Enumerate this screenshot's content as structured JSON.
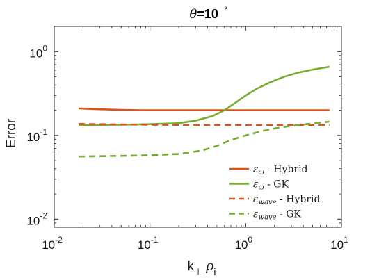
{
  "chart_data": {
    "type": "line",
    "title": {
      "prefix": "θ",
      "value": "=10",
      "suffix": "°"
    },
    "xlabel": {
      "main": "k",
      "sub1": "⊥",
      "mid": " ρ",
      "sub2": "i"
    },
    "ylabel": "Error",
    "xscale": "log",
    "yscale": "log",
    "xlim": [
      0.01,
      10
    ],
    "ylim": [
      0.008,
      2
    ],
    "xticks": [
      {
        "value": 0.01,
        "base": "10",
        "exp": "-2"
      },
      {
        "value": 0.1,
        "base": "10",
        "exp": "-1"
      },
      {
        "value": 1,
        "base": "10",
        "exp": "0"
      },
      {
        "value": 10,
        "base": "10",
        "exp": "1"
      }
    ],
    "yticks": [
      {
        "value": 0.01,
        "base": "10",
        "exp": "-2"
      },
      {
        "value": 0.1,
        "base": "10",
        "exp": "-1"
      },
      {
        "value": 1,
        "base": "10",
        "exp": "0"
      }
    ],
    "grid": false,
    "legend_position": "bottom-right",
    "series": [
      {
        "symbol": "ε",
        "sub": "ω",
        "suffix": " - Hybrid",
        "color": "#D95319",
        "dash": "solid",
        "x": [
          0.018,
          0.03,
          0.05,
          0.08,
          0.12,
          0.2,
          0.35,
          0.6,
          1.0,
          2.0,
          4.0,
          7.5
        ],
        "y": [
          0.21,
          0.205,
          0.202,
          0.2,
          0.2,
          0.2,
          0.2,
          0.2,
          0.2,
          0.2,
          0.2,
          0.2
        ]
      },
      {
        "symbol": "ε",
        "sub": "ω",
        "suffix": " - GK",
        "color": "#77AC30",
        "dash": "solid",
        "x": [
          0.018,
          0.05,
          0.1,
          0.2,
          0.3,
          0.45,
          0.6,
          0.8,
          1.0,
          1.3,
          1.8,
          2.5,
          3.5,
          5.0,
          7.5
        ],
        "y": [
          0.133,
          0.134,
          0.136,
          0.14,
          0.15,
          0.17,
          0.2,
          0.25,
          0.3,
          0.36,
          0.43,
          0.5,
          0.56,
          0.61,
          0.66
        ]
      },
      {
        "symbol": "ε",
        "sub": "wave",
        "suffix": " - Hybrid",
        "color": "#D95319",
        "dash": "dashed",
        "x": [
          0.018,
          0.05,
          0.1,
          0.3,
          0.6,
          1.0,
          2.0,
          4.0,
          7.5
        ],
        "y": [
          0.137,
          0.135,
          0.134,
          0.133,
          0.133,
          0.133,
          0.133,
          0.133,
          0.133
        ]
      },
      {
        "symbol": "ε",
        "sub": "wave",
        "suffix": " - GK",
        "color": "#77AC30",
        "dash": "dashed",
        "x": [
          0.018,
          0.05,
          0.1,
          0.2,
          0.35,
          0.5,
          0.7,
          1.0,
          1.5,
          2.0,
          3.0,
          4.5,
          7.5
        ],
        "y": [
          0.056,
          0.057,
          0.058,
          0.06,
          0.066,
          0.075,
          0.088,
          0.1,
          0.113,
          0.121,
          0.13,
          0.137,
          0.146
        ]
      }
    ]
  }
}
